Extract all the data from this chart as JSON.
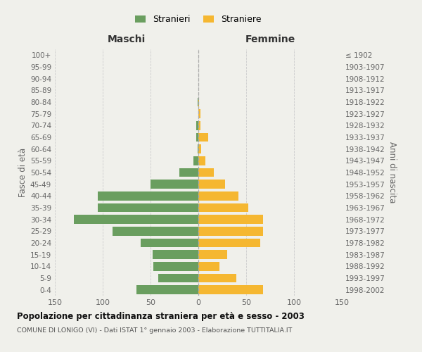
{
  "age_groups": [
    "100+",
    "95-99",
    "90-94",
    "85-89",
    "80-84",
    "75-79",
    "70-74",
    "65-69",
    "60-64",
    "55-59",
    "50-54",
    "45-49",
    "40-44",
    "35-39",
    "30-34",
    "25-29",
    "20-24",
    "15-19",
    "10-14",
    "5-9",
    "0-4"
  ],
  "birth_years": [
    "≤ 1902",
    "1903-1907",
    "1908-1912",
    "1913-1917",
    "1918-1922",
    "1923-1927",
    "1928-1932",
    "1933-1937",
    "1938-1942",
    "1943-1947",
    "1948-1952",
    "1953-1957",
    "1958-1962",
    "1963-1967",
    "1968-1972",
    "1973-1977",
    "1978-1982",
    "1983-1987",
    "1988-1992",
    "1993-1997",
    "1998-2002"
  ],
  "males": [
    0,
    0,
    0,
    0,
    1,
    0,
    2,
    2,
    1,
    5,
    20,
    50,
    105,
    105,
    130,
    90,
    60,
    48,
    47,
    42,
    65
  ],
  "females": [
    0,
    0,
    0,
    0,
    1,
    2,
    2,
    10,
    3,
    7,
    16,
    28,
    42,
    52,
    68,
    68,
    65,
    30,
    22,
    40,
    68
  ],
  "male_color": "#6a9e5f",
  "female_color": "#f5b731",
  "background_color": "#f0f0eb",
  "grid_color": "#cccccc",
  "title": "Popolazione per cittadinanza straniera per età e sesso - 2003",
  "subtitle": "COMUNE DI LONIGO (VI) - Dati ISTAT 1° gennaio 2003 - Elaborazione TUTTITALIA.IT",
  "ylabel_left": "Fasce di età",
  "ylabel_right": "Anni di nascita",
  "xlabel_left": "Maschi",
  "xlabel_right": "Femmine",
  "legend_male": "Stranieri",
  "legend_female": "Straniere",
  "xlim": 150
}
